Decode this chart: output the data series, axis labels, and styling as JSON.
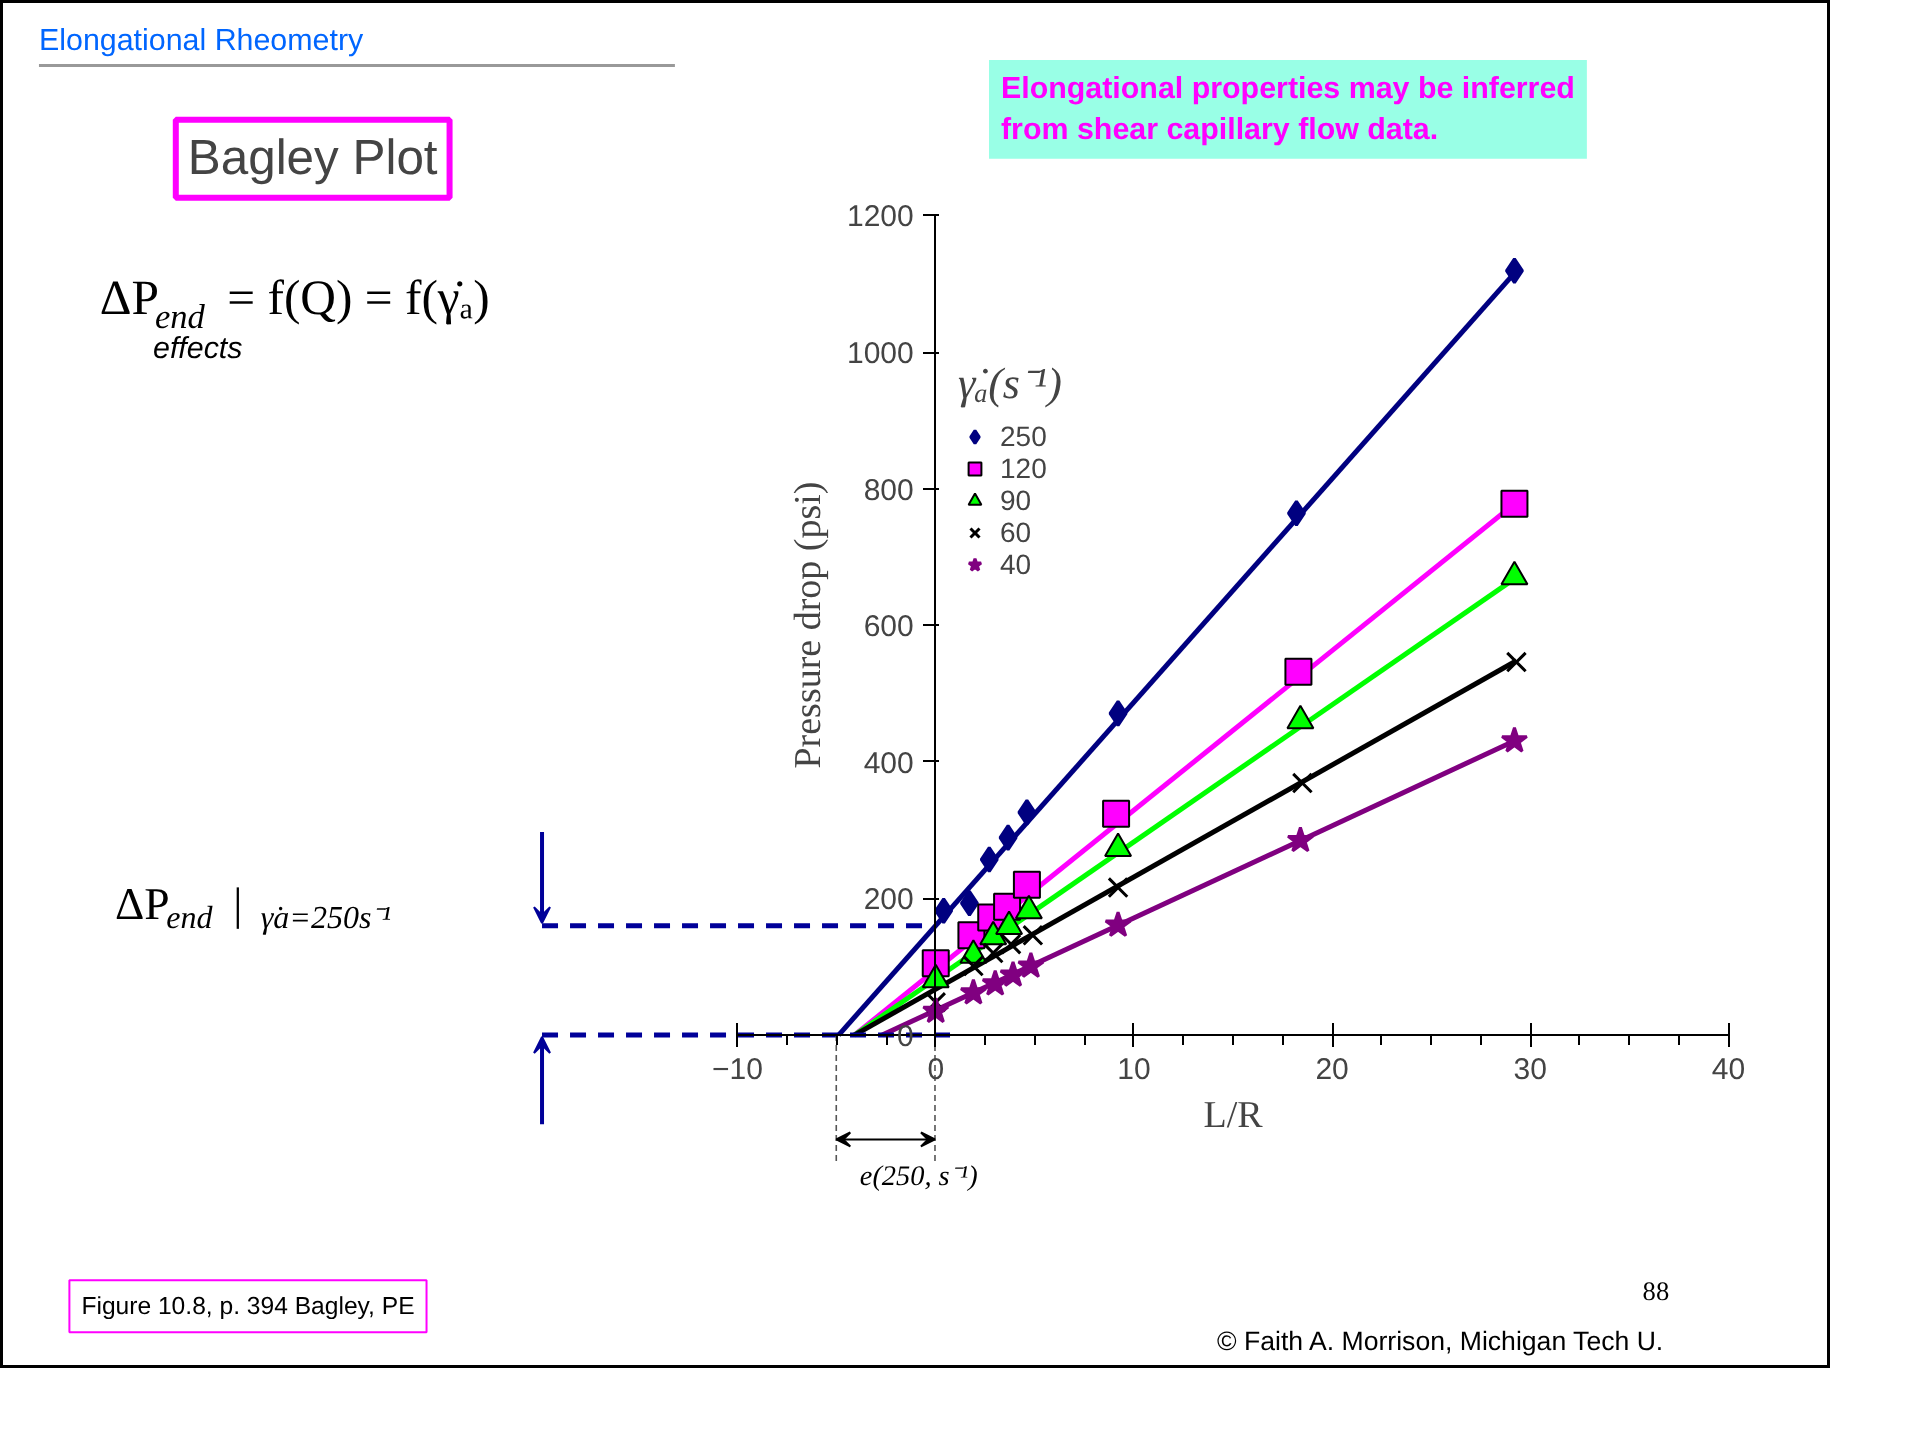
{
  "chart_data": {
    "type": "scatter",
    "title": "Bagley Plot",
    "xlabel": "L/R",
    "ylabel": "Pressure drop (psi)",
    "legend_title": "γ̇ₐ(s⁻¹)",
    "legend": "top left",
    "grid": false,
    "xlim": [
      -10,
      40
    ],
    "xticks": [
      -10,
      0,
      10,
      20,
      30,
      40
    ],
    "ylim": [
      0,
      1200
    ],
    "yticks": [
      0,
      200,
      400,
      600,
      800,
      1000,
      1200
    ],
    "series": [
      {
        "name": "250",
        "marker": "diamond",
        "color": "#000080",
        "x": [
          0.4,
          1.7,
          2.7,
          3.65,
          4.6,
          9.2,
          18.2,
          29.2
        ],
        "values": [
          182,
          193,
          257,
          289,
          326,
          471,
          764,
          1119
        ]
      },
      {
        "name": "120",
        "marker": "square",
        "color": "#ff00ff",
        "x": [
          0,
          1.8,
          2.8,
          3.6,
          4.6,
          9.1,
          18.3,
          29.2
        ],
        "values": [
          105,
          146,
          172,
          188,
          220,
          324,
          532,
          778
        ]
      },
      {
        "name": "90",
        "marker": "triangle",
        "color": "#00ff00",
        "x": [
          0,
          1.9,
          2.9,
          3.7,
          4.7,
          9.2,
          18.4,
          29.2
        ],
        "values": [
          81,
          117,
          144,
          159,
          182,
          273,
          460,
          671
        ]
      },
      {
        "name": "60",
        "marker": "cross",
        "color": "#000000",
        "x": [
          0,
          1.9,
          2.9,
          3.8,
          4.9,
          9.2,
          18.5,
          29.3
        ],
        "values": [
          48,
          101,
          120,
          133,
          146,
          216,
          369,
          546
        ]
      },
      {
        "name": "40",
        "marker": "star",
        "color": "#800080",
        "x": [
          0,
          1.9,
          3.0,
          3.9,
          4.8,
          9.2,
          18.4,
          29.2
        ],
        "values": [
          35,
          62,
          75,
          88,
          101,
          161,
          285,
          431
        ]
      },
      {
        "type": "line",
        "color": "#000080",
        "x": [
          -4.9,
          29.4
        ],
        "values": [
          0,
          1122
        ]
      },
      {
        "type": "line",
        "color": "#ff00ff",
        "x": [
          -4.1,
          29.3
        ],
        "values": [
          0,
          780
        ]
      },
      {
        "type": "line",
        "color": "#00ff00",
        "x": [
          -4.1,
          29.3
        ],
        "values": [
          0,
          670
        ]
      },
      {
        "type": "line",
        "color": "#000000",
        "x": [
          -4.1,
          29.3
        ],
        "values": [
          0,
          548
        ]
      },
      {
        "type": "line",
        "color": "#800080",
        "x": [
          -2.7,
          29.3
        ],
        "values": [
          0,
          432
        ]
      }
    ],
    "ref_lines": [
      {
        "axis": "y",
        "value": 160,
        "color": "#000099",
        "line_style": "dashed"
      },
      {
        "axis": "y",
        "value": 0,
        "color": "#000099",
        "line_style": "dashed"
      }
    ],
    "annotations": [
      "Elongational Rheometry",
      "Elongational properties may be inferred from shear capillary flow data.",
      "ΔP$_{end}$ = f(Q) = f(γ̇ₐ)",
      "effects",
      "Figure 10.8, p. 394 Bagley, PE",
      "88",
      "© Faith A. Morrison, Michigan Tech U.",
      "e(250, s⁻¹)",
      "ΔP$_{end}$|$_{γ̇a=250s⁻¹}$"
    ]
  }
}
